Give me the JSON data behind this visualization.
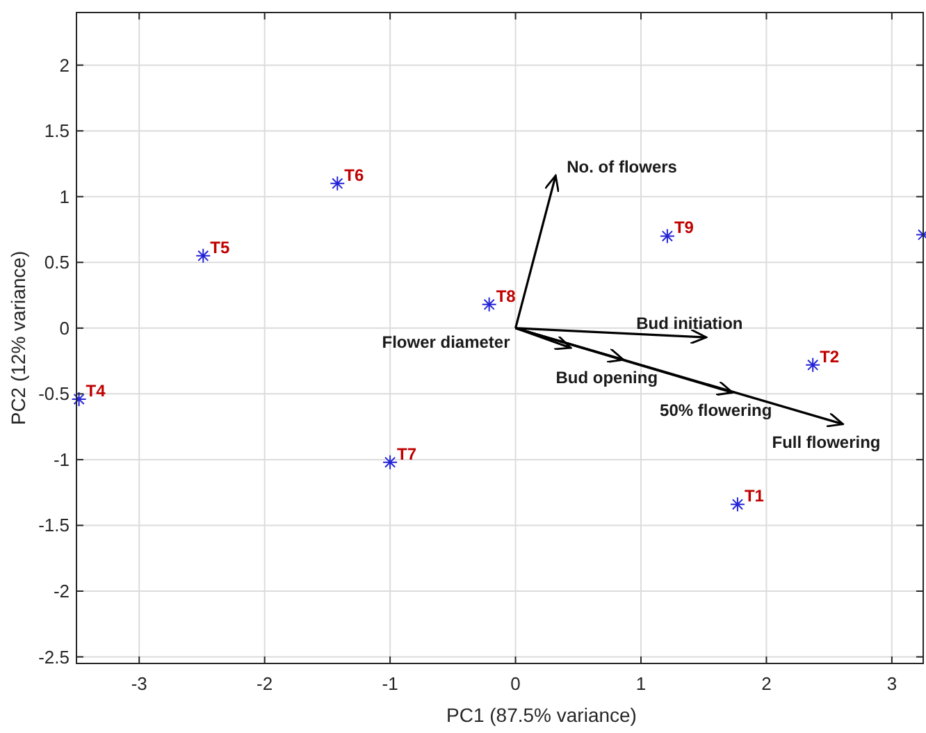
{
  "chart_data": {
    "type": "scatter",
    "xlabel": "PC1 (87.5% variance)",
    "ylabel": "PC2 (12% variance)",
    "xlim": [
      -3.5,
      3.25
    ],
    "xticks": [
      -3,
      -2,
      -1,
      0,
      1,
      2,
      3
    ],
    "ylim": [
      -2.55,
      2.4
    ],
    "yticks": [
      -2.5,
      -2,
      -1.5,
      -1,
      -0.5,
      0,
      0.5,
      1,
      1.5,
      2
    ],
    "grid": true,
    "series": [
      {
        "color": "#2323d8",
        "marker": "cross",
        "x": [
          1.77,
          2.37,
          3.25,
          -3.48,
          -2.49,
          -1.42,
          -1.0,
          -0.21,
          1.21
        ],
        "values": [
          -1.34,
          -0.28,
          0.71,
          -0.54,
          0.55,
          1.1,
          -1.02,
          0.18,
          0.7
        ],
        "value_labels": [
          "T1",
          "T2",
          null,
          "T4",
          "T5",
          "T6",
          "T7",
          "T8",
          "T9"
        ]
      },
      {
        "type": "line",
        "name": "No. of flowers",
        "color": "#000000",
        "x": [
          0,
          0.32
        ],
        "values": [
          0,
          1.16
        ]
      },
      {
        "type": "line",
        "name": "Bud initiation",
        "color": "#000000",
        "x": [
          0,
          1.52
        ],
        "values": [
          0,
          -0.07
        ]
      },
      {
        "type": "line",
        "name": "Flower diameter",
        "color": "#000000",
        "x": [
          0,
          0.44
        ],
        "values": [
          0,
          -0.15
        ]
      },
      {
        "type": "line",
        "name": "Bud opening",
        "color": "#000000",
        "x": [
          0,
          0.86
        ],
        "values": [
          0,
          -0.24
        ]
      },
      {
        "type": "line",
        "name": "50% flowering",
        "color": "#000000",
        "x": [
          0,
          1.73
        ],
        "values": [
          0,
          -0.49
        ]
      },
      {
        "type": "line",
        "name": "Full flowering",
        "color": "#000000",
        "x": [
          0,
          2.61
        ],
        "values": [
          0,
          -0.73
        ]
      }
    ]
  }
}
